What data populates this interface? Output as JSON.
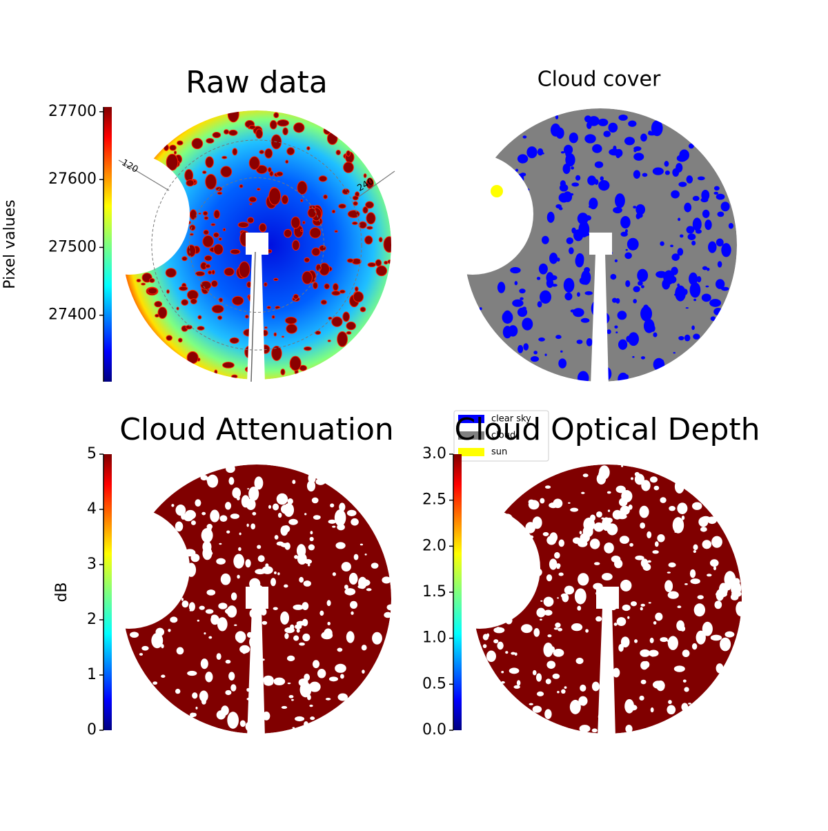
{
  "chart_data": [
    {
      "type": "image",
      "title": "Raw data",
      "colormap": "jet",
      "colorbar_label": "Pixel values",
      "clim": [
        27302,
        27707
      ],
      "cticks": [
        27400,
        27500,
        27600,
        27700
      ],
      "angle_labels": [
        "120",
        "240"
      ]
    },
    {
      "type": "image",
      "title": "Cloud cover",
      "legend": [
        {
          "name": "clear sky",
          "color": "#0000ff"
        },
        {
          "name": "cloud",
          "color": "#808080"
        },
        {
          "name": "sun",
          "color": "#ffff00"
        }
      ]
    },
    {
      "type": "image",
      "title": "Cloud Attenuation",
      "colormap": "jet",
      "colorbar_label": "dB",
      "clim": [
        0,
        5
      ],
      "cticks": [
        0,
        1,
        2,
        3,
        4,
        5
      ]
    },
    {
      "type": "image",
      "title": "Cloud Optical Depth",
      "colormap": "jet",
      "clim": [
        0,
        3
      ],
      "cticks": [
        {
          "value": 0,
          "label": "0.0"
        },
        0.5,
        {
          "value": 1,
          "label": "1.0"
        },
        1.5,
        {
          "value": 2,
          "label": "2.0"
        },
        2.5,
        {
          "value": 3,
          "label": "3.0"
        }
      ]
    }
  ]
}
